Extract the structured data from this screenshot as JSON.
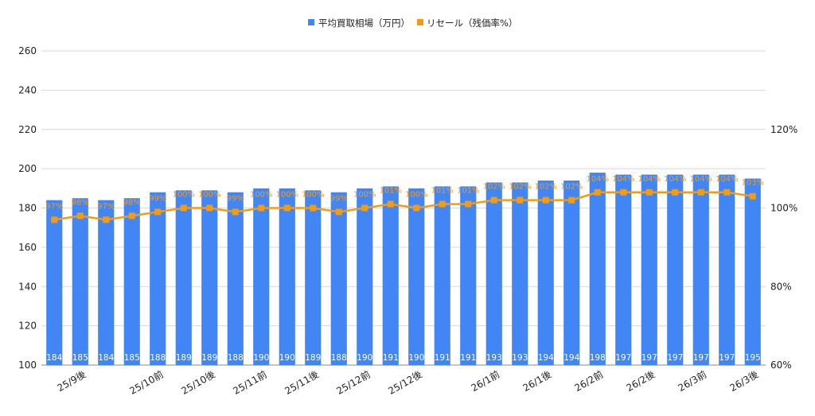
{
  "colors": {
    "bar": "#4285f4",
    "line": "#f39c12",
    "grid": "#d9d9d9",
    "axis_text": "#222222",
    "bar_label": "#ffffff",
    "point_label": "#f39c12"
  },
  "chart_data": {
    "type": "bar",
    "title": "",
    "legend_position": "top-center",
    "grid": true,
    "categories": [
      "",
      "25/9後",
      "",
      "",
      "25/10前",
      "",
      "25/10後",
      "",
      "25/11前",
      "",
      "25/11後",
      "",
      "25/12前",
      "",
      "25/12後",
      "",
      "",
      "26/1前",
      "",
      "26/1後",
      "",
      "26/2前",
      "",
      "26/2後",
      "",
      "26/3前",
      "",
      "26/3後"
    ],
    "series": [
      {
        "name": "平均買取相場（万円）",
        "type": "bar",
        "axis": "left",
        "values": [
          184,
          185,
          184,
          185,
          188,
          189,
          189,
          188,
          190,
          190,
          189,
          188,
          190,
          191,
          190,
          191,
          191,
          193,
          193,
          194,
          194,
          198,
          197,
          197,
          197,
          197,
          197,
          195
        ]
      },
      {
        "name": "リセール（残価率%）",
        "type": "line",
        "axis": "right",
        "values": [
          97,
          98,
          97,
          98,
          99,
          100,
          100,
          99,
          100,
          100,
          100,
          99,
          100,
          101,
          100,
          101,
          101,
          102,
          102,
          102,
          102,
          104,
          104,
          104,
          104,
          104,
          104,
          103
        ],
        "labels": [
          "97%",
          "98%",
          "97%",
          "98%",
          "99%",
          "100%",
          "100%",
          "99%",
          "100%",
          "100%",
          "100%",
          "99%",
          "100%",
          "101%",
          "100%",
          "101%",
          "101%",
          "102%",
          "102%",
          "102%",
          "102%",
          "104%",
          "104%",
          "104%",
          "104%",
          "104%",
          "104%",
          "103%"
        ]
      }
    ],
    "y_left": {
      "min": 100,
      "max": 260,
      "ticks": [
        100,
        120,
        140,
        160,
        180,
        200,
        220,
        240,
        260
      ]
    },
    "y_right": {
      "min": 60,
      "max": 140,
      "ticks": [
        60,
        80,
        100,
        120
      ],
      "tick_labels": [
        "60%",
        "80%",
        "100%",
        "120%"
      ]
    }
  }
}
